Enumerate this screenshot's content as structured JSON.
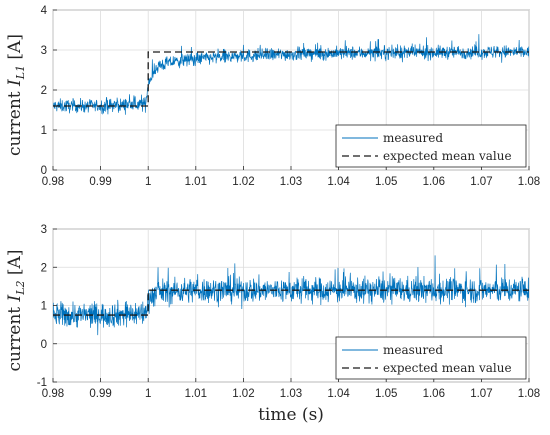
{
  "chart_data": [
    {
      "type": "line",
      "ylabel_prefix": "current ",
      "ylabel_var": "I",
      "ylabel_sub": "L1",
      "ylabel_unit": " [A]",
      "xlabel": "",
      "xlim": [
        0.98,
        1.08
      ],
      "ylim": [
        0,
        4
      ],
      "xticks": [
        "0.98",
        "0.99",
        "1",
        "1.01",
        "1.02",
        "1.03",
        "1.04",
        "1.05",
        "1.06",
        "1.07",
        "1.08"
      ],
      "yticks": [
        "0",
        "1",
        "2",
        "3",
        "4"
      ],
      "grid": true,
      "legend_position": "lower-right",
      "series": [
        {
          "name": "measured",
          "style": "solid",
          "color": "#0072BD",
          "x": [
            0.98,
            0.99,
            0.9995,
            1.0,
            1.002,
            1.005,
            1.01,
            1.02,
            1.03,
            1.04,
            1.05,
            1.06,
            1.07,
            1.08
          ],
          "y": [
            1.6,
            1.6,
            1.65,
            2.2,
            2.6,
            2.7,
            2.78,
            2.85,
            2.9,
            2.92,
            2.93,
            2.94,
            2.95,
            2.95
          ],
          "noise_amplitude": 0.15
        },
        {
          "name": "expected mean value",
          "style": "dashed",
          "color": "#1a1a1a",
          "x": [
            0.98,
            1.0,
            1.0,
            1.08
          ],
          "y": [
            1.6,
            1.6,
            2.95,
            2.95
          ]
        }
      ]
    },
    {
      "type": "line",
      "ylabel_prefix": "current ",
      "ylabel_var": "I",
      "ylabel_sub": "L2",
      "ylabel_unit": " [A]",
      "xlabel": "time (s)",
      "xlim": [
        0.98,
        1.08
      ],
      "ylim": [
        -1,
        3
      ],
      "xticks": [
        "0.98",
        "0.99",
        "1",
        "1.01",
        "1.02",
        "1.03",
        "1.04",
        "1.05",
        "1.06",
        "1.07",
        "1.08"
      ],
      "yticks": [
        "-1",
        "0",
        "1",
        "2",
        "3"
      ],
      "grid": true,
      "legend_position": "lower-right",
      "series": [
        {
          "name": "measured",
          "style": "solid",
          "color": "#0072BD",
          "x": [
            0.98,
            0.99,
            0.9995,
            1.0,
            1.002,
            1.01,
            1.02,
            1.03,
            1.04,
            1.05,
            1.06,
            1.07,
            1.08
          ],
          "y": [
            0.75,
            0.75,
            0.8,
            1.2,
            1.35,
            1.4,
            1.4,
            1.4,
            1.4,
            1.4,
            1.4,
            1.4,
            1.4
          ],
          "noise_amplitude": 0.3
        },
        {
          "name": "expected mean value",
          "style": "dashed",
          "color": "#1a1a1a",
          "x": [
            0.98,
            1.0,
            1.0,
            1.08
          ],
          "y": [
            0.75,
            0.75,
            1.4,
            1.4
          ]
        }
      ]
    }
  ]
}
